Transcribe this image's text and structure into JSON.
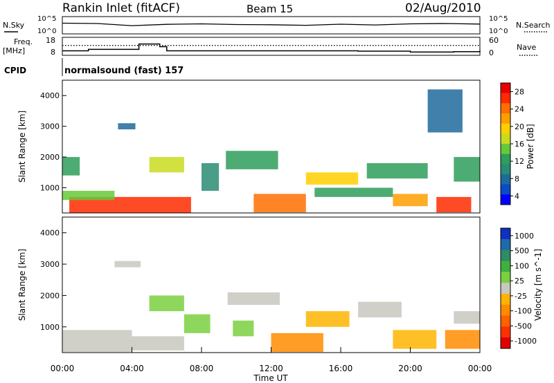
{
  "header": {
    "site": "Rankin Inlet (fitACF)",
    "beam": "Beam 15",
    "date": "02/Aug/2010"
  },
  "nsky_panel": {
    "label": "N.Sky",
    "ytick_top": "10^5",
    "ytick_bottom": "10^0",
    "right_label": "N.Search",
    "right_tick_top": "10^5",
    "right_tick_bottom": "10^0"
  },
  "freq_panel": {
    "label_line1": "Freq.",
    "label_line2": "[MHz]",
    "yticks": [
      "18",
      "8"
    ],
    "right_label": "Nave",
    "right_ticks": [
      "60",
      "0"
    ]
  },
  "cpid": {
    "label": "CPID",
    "value": "normalsound (fast) 157"
  },
  "power_panel": {
    "ylabel": "Slant Range [km]",
    "yticks": [
      "4000",
      "3000",
      "2000",
      "1000"
    ],
    "colorbar_label": "Power [dB]",
    "colorbar_ticks": [
      "28",
      "24",
      "20",
      "16",
      "12",
      "8",
      "4"
    ],
    "colorbar_colors": [
      "#e80000",
      "#ff2a00",
      "#ff6e00",
      "#ff9e00",
      "#ffcf00",
      "#c8dc1e",
      "#66c93a",
      "#2e9e5a",
      "#2a8c73",
      "#1f6a9c",
      "#0a4bc8",
      "#0000ff"
    ]
  },
  "velocity_panel": {
    "ylabel": "Slant Range [km]",
    "yticks": [
      "4000",
      "3000",
      "2000",
      "1000"
    ],
    "colorbar_label": "Velocity [m s^-1]",
    "colorbar_ticks": [
      "1000",
      "500",
      "100",
      "25",
      "-25",
      "-100",
      "-500",
      "-1000"
    ],
    "colorbar_colors": [
      "#1030c0",
      "#1f6aa8",
      "#2e8c64",
      "#3fb040",
      "#7ad040",
      "#c8c8c0",
      "#ffb400",
      "#ff8c00",
      "#ff6000",
      "#ff3000",
      "#e00000"
    ]
  },
  "x_axis": {
    "title": "Time UT",
    "ticks": [
      "00:00",
      "04:00",
      "08:00",
      "12:00",
      "16:00",
      "20:00",
      "00:00"
    ]
  },
  "chart_data": [
    {
      "type": "line",
      "title": "N.Sky / N.Search",
      "x": [
        0,
        2,
        4,
        6,
        8,
        10,
        12,
        14,
        16,
        18,
        20,
        22,
        24
      ],
      "series": [
        {
          "name": "N.Sky",
          "values": [
            2000,
            1500,
            300,
            800,
            1200,
            700,
            600,
            400,
            900,
            500,
            1200,
            1500,
            1000
          ]
        }
      ],
      "ylim": [
        1,
        100000
      ],
      "log_scale": true
    },
    {
      "type": "line",
      "title": "Freq. / Nave",
      "x": [
        0,
        1.5,
        3,
        4.4,
        5.6,
        6.0,
        10,
        14,
        17,
        20,
        22.5,
        24
      ],
      "series": [
        {
          "name": "Freq. [MHz]",
          "values": [
            10.5,
            11.3,
            11.3,
            14.3,
            12.8,
            10.5,
            10.5,
            10.5,
            10.3,
            9.8,
            10.0,
            10.6
          ]
        },
        {
          "name": "Nave",
          "values": [
            33,
            33,
            33,
            33,
            33,
            33,
            33,
            33,
            33,
            33,
            33,
            33
          ]
        }
      ],
      "ylim": [
        8,
        18
      ]
    },
    {
      "type": "heatmap",
      "title": "Power [dB]",
      "xlabel": "Time UT",
      "ylabel": "Slant Range [km]",
      "xlim": [
        0,
        24
      ],
      "ylim": [
        180,
        4500
      ],
      "clim": [
        0,
        30
      ],
      "regions": [
        {
          "t0": 0.4,
          "t1": 7.4,
          "r0": 180,
          "r1": 700,
          "value": 26
        },
        {
          "t0": 0.0,
          "t1": 3.0,
          "r0": 600,
          "r1": 900,
          "value": 14
        },
        {
          "t0": 0.0,
          "t1": 1.0,
          "r0": 1400,
          "r1": 2000,
          "value": 10
        },
        {
          "t0": 3.2,
          "t1": 4.2,
          "r0": 2900,
          "r1": 3100,
          "value": 6
        },
        {
          "t0": 5.0,
          "t1": 7.0,
          "r0": 1500,
          "r1": 2000,
          "value": 16
        },
        {
          "t0": 8.0,
          "t1": 9.0,
          "r0": 900,
          "r1": 1800,
          "value": 8
        },
        {
          "t0": 9.4,
          "t1": 12.4,
          "r0": 1600,
          "r1": 2200,
          "value": 10
        },
        {
          "t0": 11.0,
          "t1": 14.0,
          "r0": 200,
          "r1": 800,
          "value": 24
        },
        {
          "t0": 14.0,
          "t1": 17.0,
          "r0": 1100,
          "r1": 1500,
          "value": 18
        },
        {
          "t0": 14.5,
          "t1": 19.0,
          "r0": 700,
          "r1": 1000,
          "value": 12
        },
        {
          "t0": 19.0,
          "t1": 21.0,
          "r0": 400,
          "r1": 800,
          "value": 22
        },
        {
          "t0": 21.5,
          "t1": 23.5,
          "r0": 200,
          "r1": 700,
          "value": 26
        },
        {
          "t0": 17.5,
          "t1": 21.0,
          "r0": 1300,
          "r1": 1800,
          "value": 12
        },
        {
          "t0": 22.5,
          "t1": 24.0,
          "r0": 1200,
          "r1": 2000,
          "value": 10
        },
        {
          "t0": 21.0,
          "t1": 23.0,
          "r0": 2800,
          "r1": 4200,
          "value": 6
        }
      ]
    },
    {
      "type": "heatmap",
      "title": "Velocity [m s^-1]",
      "xlabel": "Time UT",
      "ylabel": "Slant Range [km]",
      "xlim": [
        0,
        24
      ],
      "ylim": [
        180,
        4500
      ],
      "clim": [
        -1000,
        1000
      ],
      "regions": [
        {
          "t0": 0.0,
          "t1": 4.0,
          "r0": 200,
          "r1": 900,
          "value": 60
        },
        {
          "t0": 4.0,
          "t1": 7.0,
          "r0": 250,
          "r1": 700,
          "value": 0
        },
        {
          "t0": 5.0,
          "t1": 7.0,
          "r0": 1500,
          "r1": 2000,
          "value": 150
        },
        {
          "t0": 7.0,
          "t1": 8.5,
          "r0": 800,
          "r1": 1400,
          "value": 300
        },
        {
          "t0": 3.0,
          "t1": 4.5,
          "r0": 2900,
          "r1": 3100,
          "value": 0
        },
        {
          "t0": 9.5,
          "t1": 12.5,
          "r0": 1700,
          "r1": 2100,
          "value": 0
        },
        {
          "t0": 9.8,
          "t1": 11.0,
          "r0": 700,
          "r1": 1200,
          "value": 200
        },
        {
          "t0": 12.0,
          "t1": 15.0,
          "r0": 200,
          "r1": 800,
          "value": -300
        },
        {
          "t0": 14.0,
          "t1": 16.5,
          "r0": 1000,
          "r1": 1500,
          "value": -200
        },
        {
          "t0": 17.0,
          "t1": 19.5,
          "r0": 1300,
          "r1": 1800,
          "value": 0
        },
        {
          "t0": 19.0,
          "t1": 21.5,
          "r0": 300,
          "r1": 900,
          "value": -150
        },
        {
          "t0": 22.0,
          "t1": 24.0,
          "r0": 300,
          "r1": 900,
          "value": -400
        },
        {
          "t0": 22.5,
          "t1": 24.0,
          "r0": 1100,
          "r1": 1500,
          "value": 50
        }
      ]
    }
  ]
}
